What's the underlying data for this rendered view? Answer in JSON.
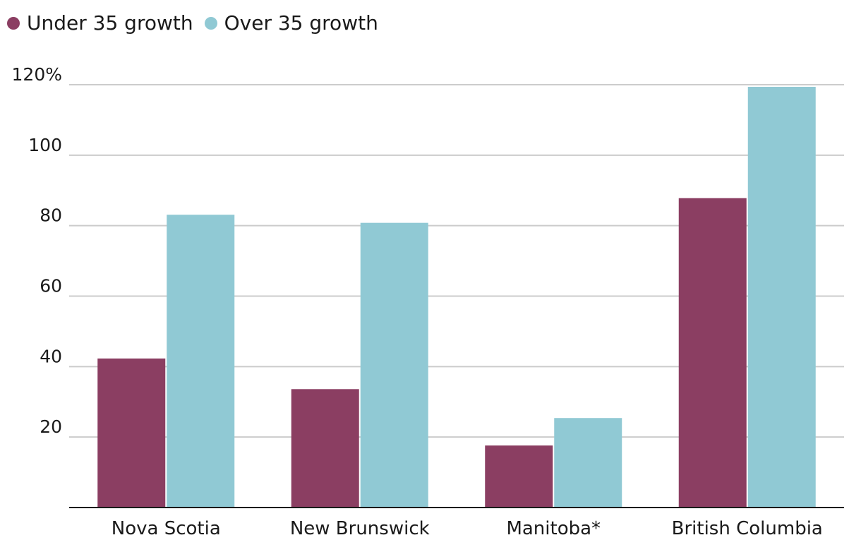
{
  "chart_data": {
    "type": "bar",
    "categories": [
      "Nova Scotia",
      "New Brunswick",
      "Manitoba*",
      "British Columbia"
    ],
    "series": [
      {
        "name": "Under 35 growth",
        "color": "#8b3e62",
        "values": [
          42.3,
          33.6,
          17.6,
          87.8
        ]
      },
      {
        "name": "Over 35 growth",
        "color": "#90c9d4",
        "values": [
          83.1,
          80.8,
          25.4,
          119.4
        ]
      }
    ],
    "y_ticks": [
      {
        "value": 20,
        "label": "20"
      },
      {
        "value": 40,
        "label": "40"
      },
      {
        "value": 60,
        "label": "60"
      },
      {
        "value": 80,
        "label": "80"
      },
      {
        "value": 100,
        "label": "100"
      },
      {
        "value": 120,
        "label": "120%"
      }
    ],
    "ylim": [
      0,
      120
    ],
    "grid": true,
    "legend_position": "top-left"
  }
}
